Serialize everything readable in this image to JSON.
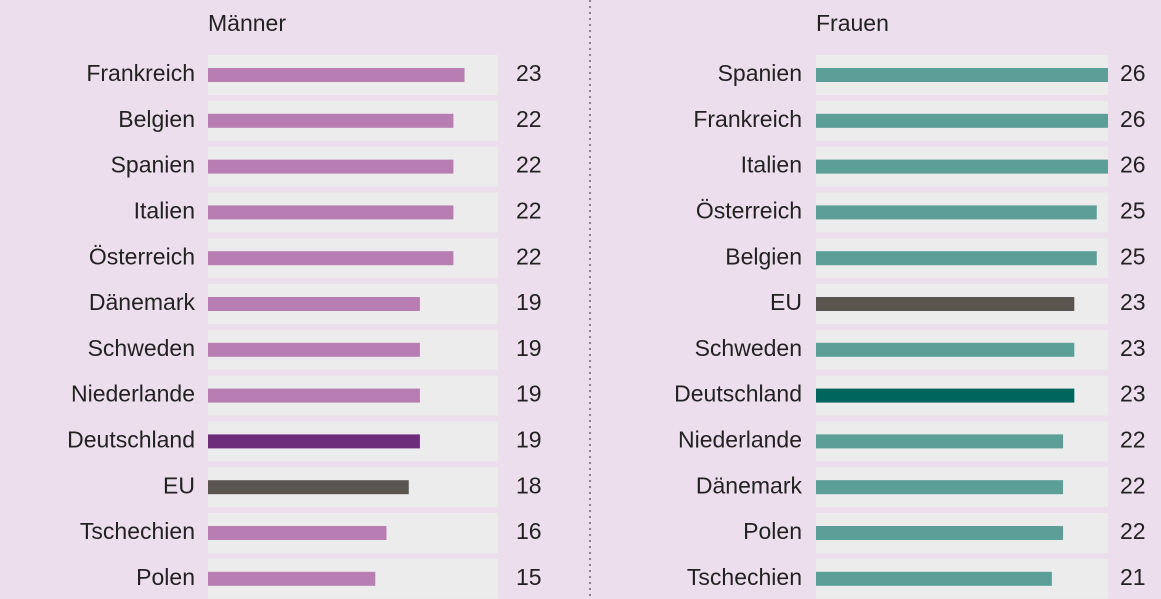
{
  "chart_data": [
    {
      "type": "barh",
      "title": "Männer",
      "categories": [
        "Frankreich",
        "Belgien",
        "Spanien",
        "Italien",
        "Österreich",
        "Dänemark",
        "Schweden",
        "Niederlande",
        "Deutschland",
        "EU",
        "Tschechien",
        "Polen"
      ],
      "values": [
        23,
        22,
        22,
        22,
        22,
        19,
        19,
        19,
        19,
        18,
        16,
        15
      ],
      "colors": [
        "#b87db2",
        "#b87db2",
        "#b87db2",
        "#b87db2",
        "#b87db2",
        "#b87db2",
        "#b87db2",
        "#b87db2",
        "#6d2d7b",
        "#5b5550",
        "#b87db2",
        "#b87db2"
      ],
      "xlim": [
        0,
        26
      ]
    },
    {
      "type": "barh",
      "title": "Frauen",
      "categories": [
        "Spanien",
        "Frankreich",
        "Italien",
        "Österreich",
        "Belgien",
        "EU",
        "Schweden",
        "Deutschland",
        "Niederlande",
        "Dänemark",
        "Polen",
        "Tschechien"
      ],
      "values": [
        26,
        26,
        26,
        25,
        25,
        23,
        23,
        23,
        22,
        22,
        22,
        21
      ],
      "colors": [
        "#5b9f98",
        "#5b9f98",
        "#5b9f98",
        "#5b9f98",
        "#5b9f98",
        "#5b5550",
        "#5b9f98",
        "#00665d",
        "#5b9f98",
        "#5b9f98",
        "#5b9f98",
        "#5b9f98"
      ],
      "xlim": [
        0,
        26
      ]
    }
  ]
}
